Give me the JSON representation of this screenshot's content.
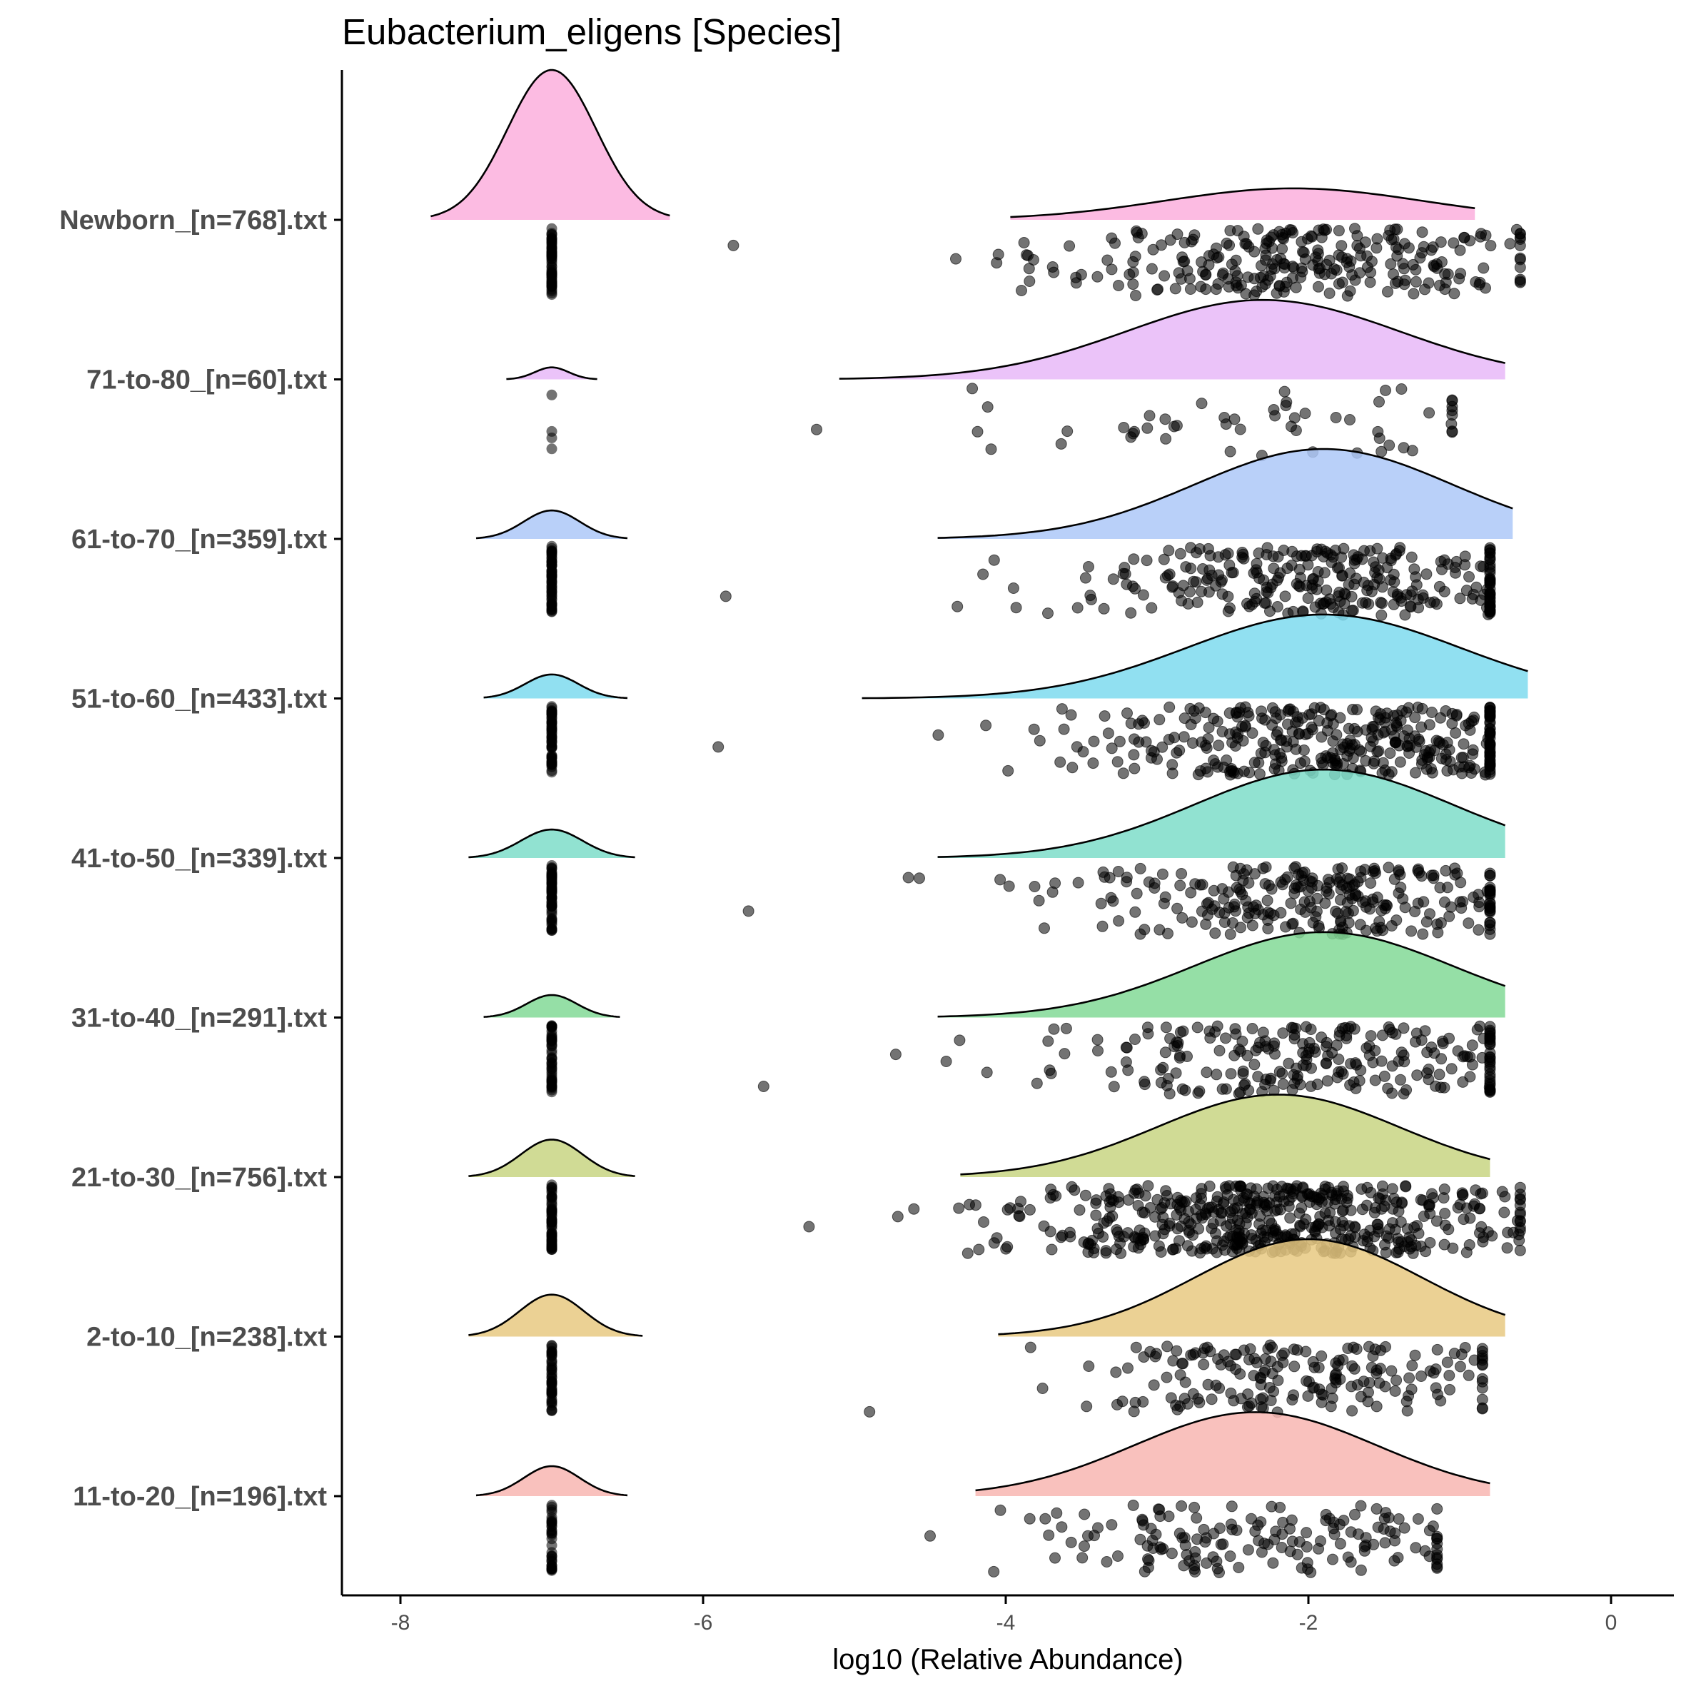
{
  "chart_data": {
    "type": "raincloud",
    "title": "Eubacterium_eligens [Species]",
    "xlabel": "log10 (Relative Abundance)",
    "ylabel": "",
    "xlim": [
      -8.4,
      0.4
    ],
    "xticks": [
      -8,
      -6,
      -4,
      -2,
      0
    ],
    "zero_value": -7,
    "groups": [
      {
        "label": "Newborn_[n=768].txt",
        "color": "#FBAFDD",
        "zero_count": 340,
        "zero_peak": 1.0,
        "zero_xmin": -7.8,
        "zero_xmax": -6.22,
        "dist_mean": -2.1,
        "dist_sd": 0.85,
        "dist_xmin": -3.97,
        "dist_xmax": -0.9,
        "dist_peak": 0.21,
        "n_points": 270,
        "min_point": -5.8,
        "max_point": -0.6
      },
      {
        "label": "71-to-80_[n=60].txt",
        "color": "#E7B9F8",
        "zero_count": 4,
        "zero_peak": 0.08,
        "zero_xmin": -7.3,
        "zero_xmax": -6.7,
        "dist_mean": -2.3,
        "dist_sd": 0.9,
        "dist_xmin": -5.1,
        "dist_xmax": -0.7,
        "dist_peak": 0.53,
        "n_points": 55,
        "min_point": -5.25,
        "max_point": -1.05
      },
      {
        "label": "61-to-70_[n=359].txt",
        "color": "#ADC8F8",
        "zero_count": 60,
        "zero_peak": 0.19,
        "zero_xmin": -7.5,
        "zero_xmax": -6.5,
        "dist_mean": -1.9,
        "dist_sd": 0.85,
        "dist_xmin": -4.45,
        "dist_xmax": -0.65,
        "dist_peak": 0.6,
        "n_points": 300,
        "min_point": -5.85,
        "max_point": -0.8
      },
      {
        "label": "51-to-60_[n=433].txt",
        "color": "#7EDAEE",
        "zero_count": 60,
        "zero_peak": 0.16,
        "zero_xmin": -7.45,
        "zero_xmax": -6.5,
        "dist_mean": -1.9,
        "dist_sd": 0.9,
        "dist_xmin": -4.95,
        "dist_xmax": -0.55,
        "dist_peak": 0.56,
        "n_points": 370,
        "min_point": -5.9,
        "max_point": -0.8
      },
      {
        "label": "41-to-50_[n=339].txt",
        "color": "#7EDDC9",
        "zero_count": 60,
        "zero_peak": 0.19,
        "zero_xmin": -7.55,
        "zero_xmax": -6.45,
        "dist_mean": -1.9,
        "dist_sd": 0.85,
        "dist_xmin": -4.45,
        "dist_xmax": -0.7,
        "dist_peak": 0.59,
        "n_points": 280,
        "min_point": -5.7,
        "max_point": -0.8
      },
      {
        "label": "31-to-40_[n=291].txt",
        "color": "#83D996",
        "zero_count": 45,
        "zero_peak": 0.15,
        "zero_xmin": -7.45,
        "zero_xmax": -6.55,
        "dist_mean": -1.9,
        "dist_sd": 0.85,
        "dist_xmin": -4.45,
        "dist_xmax": -0.7,
        "dist_peak": 0.57,
        "n_points": 245,
        "min_point": -5.6,
        "max_point": -0.8
      },
      {
        "label": "21-to-30_[n=756].txt",
        "color": "#C8D582",
        "zero_count": 230,
        "zero_peak": 0.25,
        "zero_xmin": -7.55,
        "zero_xmax": -6.45,
        "dist_mean": -2.2,
        "dist_sd": 0.8,
        "dist_xmin": -4.3,
        "dist_xmax": -0.8,
        "dist_peak": 0.55,
        "n_points": 520,
        "min_point": -5.3,
        "max_point": -0.6
      },
      {
        "label": "2-to-10_[n=238].txt",
        "color": "#E8C981",
        "zero_count": 45,
        "zero_peak": 0.28,
        "zero_xmin": -7.55,
        "zero_xmax": -6.4,
        "dist_mean": -2.0,
        "dist_sd": 0.75,
        "dist_xmin": -4.05,
        "dist_xmax": -0.7,
        "dist_peak": 0.65,
        "n_points": 190,
        "min_point": -4.9,
        "max_point": -0.85
      },
      {
        "label": "11-to-20_[n=196].txt",
        "color": "#F8B6B2",
        "zero_count": 35,
        "zero_peak": 0.2,
        "zero_xmin": -7.5,
        "zero_xmax": -6.5,
        "dist_mean": -2.35,
        "dist_sd": 0.8,
        "dist_xmin": -4.2,
        "dist_xmax": -0.8,
        "dist_peak": 0.56,
        "n_points": 160,
        "min_point": -4.5,
        "max_point": -1.15
      }
    ]
  }
}
